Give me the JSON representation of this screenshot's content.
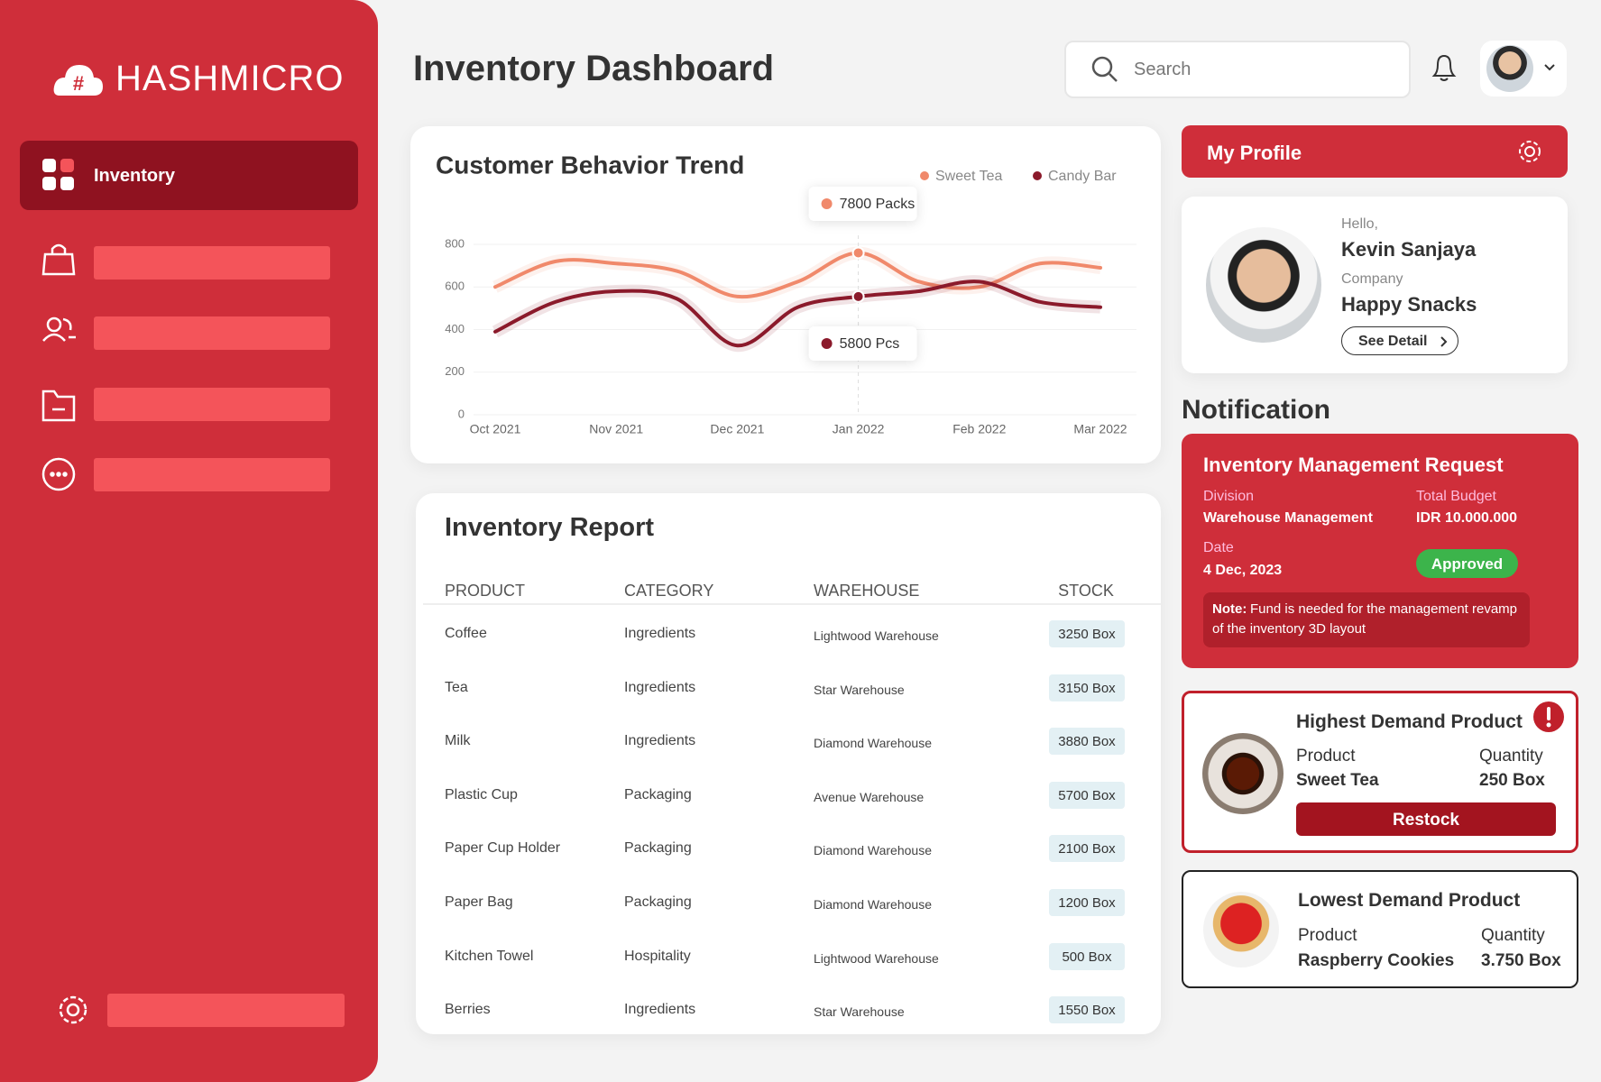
{
  "sidebar": {
    "brand": "HASHMICRO",
    "active_item": "Inventory"
  },
  "header": {
    "title": "Inventory Dashboard",
    "search_placeholder": "Search"
  },
  "chart_data": {
    "type": "line",
    "title": "Customer Behavior Trend",
    "categories": [
      "Oct 2021",
      null,
      "Nov 2021",
      null,
      "Dec 2021",
      null,
      "Jan 2022",
      null,
      "Feb 2022",
      null,
      "Mar 2022"
    ],
    "series": [
      {
        "name": "Sweet Tea",
        "color": "#f0896b",
        "values": [
          600,
          720,
          710,
          675,
          555,
          625,
          760,
          625,
          600,
          710,
          690
        ]
      },
      {
        "name": "Candy Bar",
        "color": "#8b1a2b",
        "values": [
          390,
          530,
          580,
          545,
          325,
          505,
          555,
          580,
          625,
          530,
          505
        ]
      }
    ],
    "annotations": [
      "7800 Packs",
      "5800 Pcs"
    ],
    "ylim": [
      0,
      800
    ],
    "yticks": [
      0,
      200,
      400,
      600,
      800
    ],
    "grid": true,
    "legend": "top-right"
  },
  "report": {
    "title": "Inventory Report",
    "columns": [
      "PRODUCT",
      "CATEGORY",
      "WAREHOUSE",
      "STOCK"
    ],
    "rows": [
      [
        "Coffee",
        "Ingredients",
        "Lightwood Warehouse",
        "3250 Box"
      ],
      [
        "Tea",
        "Ingredients",
        "Star Warehouse",
        "3150 Box"
      ],
      [
        "Milk",
        "Ingredients",
        "Diamond Warehouse",
        "3880 Box"
      ],
      [
        "Plastic Cup",
        "Packaging",
        "Avenue Warehouse",
        "5700 Box"
      ],
      [
        "Paper Cup Holder",
        "Packaging",
        "Diamond Warehouse",
        "2100 Box"
      ],
      [
        "Paper Bag",
        "Packaging",
        "Diamond Warehouse",
        "1200 Box"
      ],
      [
        "Kitchen Towel",
        "Hospitality",
        "Lightwood Warehouse",
        "500 Box"
      ],
      [
        "Berries",
        "Ingredients",
        "Star Warehouse",
        "1550 Box"
      ]
    ]
  },
  "profile": {
    "title": "My Profile",
    "greeting": "Hello,",
    "name": "Kevin Sanjaya",
    "company_label": "Company",
    "company": "Happy Snacks",
    "button": "See Detail"
  },
  "notification": {
    "title": "Notification",
    "request": {
      "title": "Inventory Management Request",
      "division_label": "Division",
      "division": "Warehouse Management",
      "budget_label": "Total Budget",
      "budget": "IDR 10.000.000",
      "date_label": "Date",
      "date": "4 Dec, 2023",
      "status": "Approved",
      "note_label": "Note:",
      "note": "Fund is needed for the management revamp of the inventory 3D layout"
    },
    "highest": {
      "title": "Highest Demand Product",
      "product_label": "Product",
      "product": "Sweet Tea",
      "quantity_label": "Quantity",
      "quantity": "250 Box",
      "button": "Restock"
    },
    "lowest": {
      "title": "Lowest Demand Product",
      "product_label": "Product",
      "product": "Raspberry Cookies",
      "quantity_label": "Quantity",
      "quantity": "3.750 Box"
    }
  }
}
